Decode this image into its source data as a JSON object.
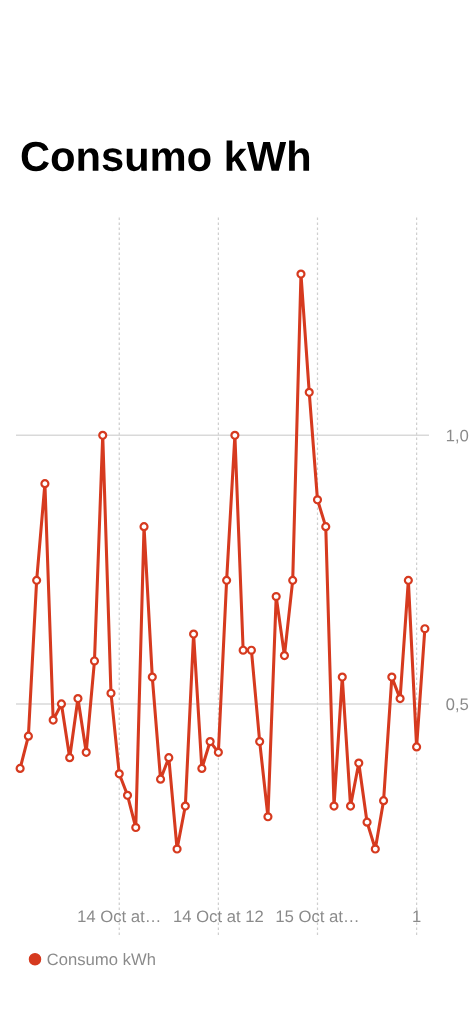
{
  "chart_data": {
    "type": "line",
    "title": "Consumo kWh",
    "categories": [
      null,
      null,
      null,
      null,
      null,
      null,
      null,
      null,
      null,
      null,
      null,
      null,
      "14 Oct at…",
      null,
      null,
      null,
      null,
      null,
      null,
      null,
      null,
      null,
      null,
      null,
      "14 Oct at 12",
      null,
      null,
      null,
      null,
      null,
      null,
      null,
      null,
      null,
      null,
      null,
      "15 Oct at…",
      null,
      null,
      null,
      null,
      null,
      null,
      null,
      null,
      null,
      null,
      null,
      "1",
      null
    ],
    "series": [
      {
        "name": "Consumo kWh",
        "color": "#d63a1f",
        "values": [
          0.38,
          0.44,
          0.73,
          0.91,
          0.47,
          0.5,
          0.4,
          0.51,
          0.41,
          0.58,
          1.0,
          0.52,
          0.37,
          0.33,
          0.27,
          0.83,
          0.55,
          0.36,
          0.4,
          0.23,
          0.31,
          0.63,
          0.38,
          0.43,
          0.41,
          0.73,
          1.0,
          0.6,
          0.6,
          0.43,
          0.29,
          0.7,
          0.59,
          0.73,
          1.3,
          1.08,
          0.88,
          0.83,
          0.31,
          0.55,
          0.31,
          0.39,
          0.28,
          0.23,
          0.32,
          0.55,
          0.51,
          0.73,
          0.42,
          0.64
        ]
      }
    ],
    "ylim": [
      0.07,
      1.41
    ],
    "yticks": [
      {
        "value": 0.5,
        "label": "0,5"
      },
      {
        "value": 1.0,
        "label": "1,0"
      }
    ],
    "grid": true,
    "legend": "bottom left",
    "marker": "circle",
    "line_style": "solid"
  }
}
